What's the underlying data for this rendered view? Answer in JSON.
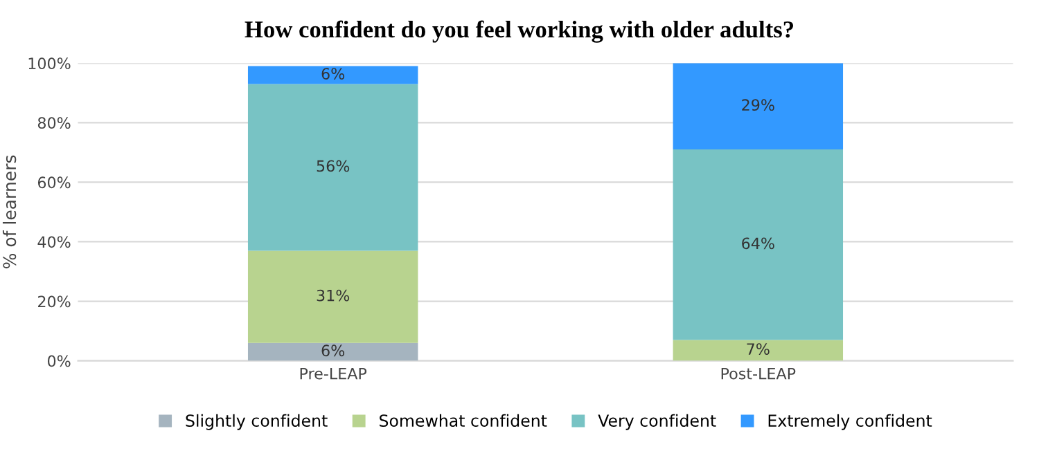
{
  "chart_data": {
    "type": "bar",
    "stacked": true,
    "title": "How confident do you feel working with older adults?",
    "ylabel": "% of learners",
    "categories": [
      "Pre-LEAP",
      "Post-LEAP"
    ],
    "series": [
      {
        "name": "Slightly confident",
        "color": "#a5b4bf",
        "values": [
          6,
          null
        ],
        "value_labels": [
          "6%",
          null
        ]
      },
      {
        "name": "Somewhat confident",
        "color": "#b8d38f",
        "values": [
          31,
          7
        ],
        "value_labels": [
          "31%",
          "7%"
        ]
      },
      {
        "name": "Very confident",
        "color": "#78c3c4",
        "values": [
          56,
          64
        ],
        "value_labels": [
          "56%",
          "64%"
        ]
      },
      {
        "name": "Extremely confident",
        "color": "#3399ff",
        "values": [
          6,
          29
        ],
        "value_labels": [
          "6%",
          "29%"
        ]
      }
    ],
    "ylim": [
      0,
      100
    ],
    "yticks": [
      {
        "value": 0,
        "label": "0%"
      },
      {
        "value": 20,
        "label": "20%"
      },
      {
        "value": 40,
        "label": "40%"
      },
      {
        "value": 60,
        "label": "60%"
      },
      {
        "value": 80,
        "label": "80%"
      },
      {
        "value": 100,
        "label": "100%"
      }
    ],
    "grid": "y",
    "legend": "bottom"
  }
}
